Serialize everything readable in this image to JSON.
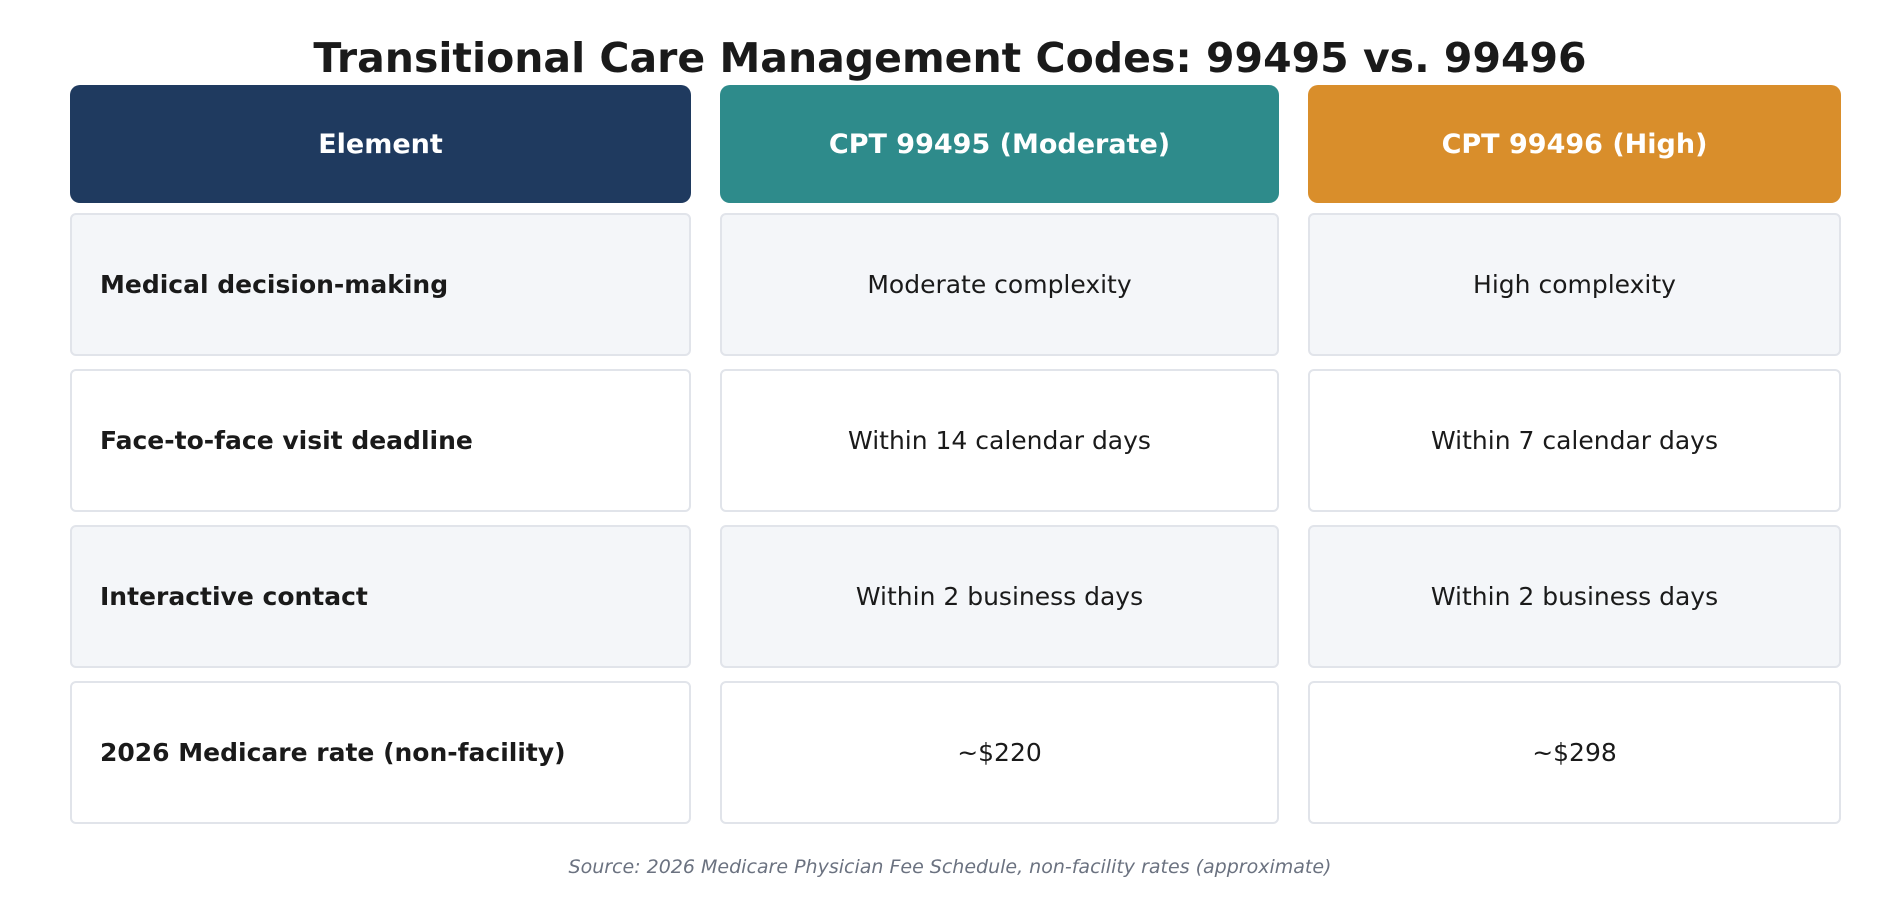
{
  "title": "Transitional Care Management Codes: 99495 vs. 99496",
  "colors": {
    "element_header": "#1f3a5f",
    "moderate_header": "#2e8b8b",
    "high_header": "#d98e2b"
  },
  "headers": [
    "Element",
    "CPT 99495 (Moderate)",
    "CPT 99496 (High)"
  ],
  "rows": [
    {
      "element": "Medical decision-making",
      "moderate": "Moderate complexity",
      "high": "High complexity"
    },
    {
      "element": "Face-to-face visit deadline",
      "moderate": "Within 14 calendar days",
      "high": "Within 7 calendar days"
    },
    {
      "element": "Interactive contact",
      "moderate": "Within 2 business days",
      "high": "Within 2 business days"
    },
    {
      "element": "2026 Medicare rate (non-facility)",
      "moderate": "~$220",
      "high": "~$298"
    }
  ],
  "source": "Source: 2026 Medicare Physician Fee Schedule, non-facility rates (approximate)"
}
